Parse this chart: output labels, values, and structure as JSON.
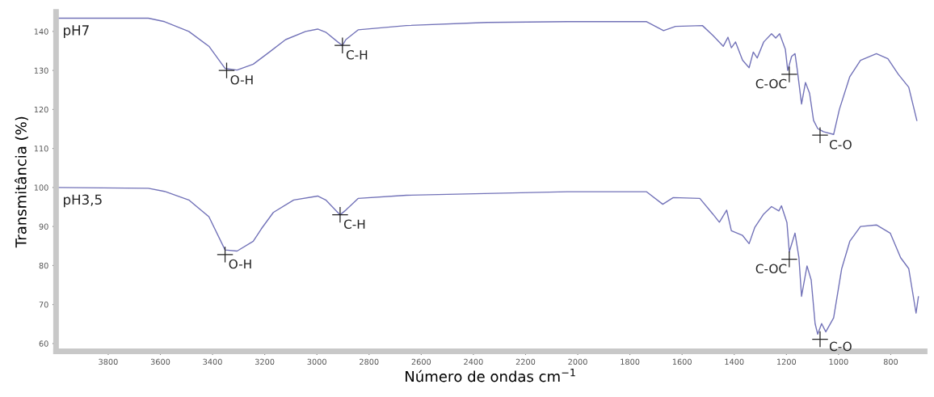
{
  "chart_data": {
    "type": "line",
    "xlabel": "Número de ondas cm$^{−1}$",
    "ylabel": "Transmitância (%)",
    "xlim": [
      4000,
      670
    ],
    "ylim": [
      58,
      145
    ],
    "xticks": [
      3800,
      3600,
      3400,
      3200,
      3000,
      2800,
      2600,
      2400,
      2200,
      2000,
      1800,
      1600,
      1400,
      1200,
      1000,
      800
    ],
    "yticks": [
      60,
      70,
      80,
      90,
      100,
      110,
      120,
      130,
      140
    ],
    "grid": false,
    "legend": false,
    "marker": "none",
    "line_style": "solid",
    "series": [
      {
        "name": "pH7",
        "color": "#7272b8",
        "x": [
          3992,
          3646,
          3584,
          3491,
          3414,
          3352,
          3306,
          3244,
          3182,
          3120,
          3043,
          2997,
          2966,
          2920,
          2902,
          2889,
          2842,
          2657,
          2348,
          2039,
          1736,
          1671,
          1625,
          1522,
          1482,
          1442,
          1424,
          1411,
          1395,
          1368,
          1343,
          1327,
          1312,
          1287,
          1257,
          1241,
          1226,
          1204,
          1195,
          1180,
          1167,
          1158,
          1142,
          1127,
          1111,
          1096,
          1080,
          1058,
          1019,
          997,
          957,
          916,
          855,
          811,
          771,
          731,
          700
        ],
        "values": [
          143.4,
          143.4,
          142.5,
          140,
          136.2,
          130.5,
          130.1,
          131.6,
          134.7,
          137.9,
          140,
          140.6,
          139.8,
          137.3,
          136.4,
          137.9,
          140.4,
          141.5,
          142.3,
          142.5,
          142.5,
          140.2,
          141.3,
          141.5,
          139,
          136.2,
          138.5,
          135.8,
          137.3,
          132.6,
          130.7,
          134.7,
          133.2,
          137.3,
          139.4,
          138.3,
          139.4,
          135.4,
          130,
          133.6,
          134.3,
          130,
          121.4,
          126.9,
          124.1,
          117.2,
          115.1,
          114.3,
          113.6,
          120,
          128.4,
          132.6,
          134.3,
          133,
          129,
          125.7,
          117.2
        ]
      },
      {
        "name": "pH3,5",
        "color": "#7272b8",
        "x": [
          3992,
          3646,
          3584,
          3491,
          3414,
          3352,
          3306,
          3244,
          3213,
          3167,
          3089,
          2997,
          2966,
          2920,
          2911,
          2889,
          2842,
          2657,
          2039,
          1736,
          1674,
          1634,
          1532,
          1482,
          1457,
          1429,
          1411,
          1368,
          1343,
          1321,
          1287,
          1257,
          1229,
          1219,
          1198,
          1189,
          1167,
          1152,
          1142,
          1121,
          1105,
          1090,
          1080,
          1065,
          1049,
          1019,
          988,
          957,
          916,
          855,
          802,
          762,
          731,
          703,
          694
        ],
        "values": [
          100,
          99.8,
          99,
          96.8,
          92.5,
          84,
          83.7,
          86.2,
          89.4,
          93.6,
          96.8,
          97.8,
          96.8,
          93.6,
          93,
          94.2,
          97.2,
          98,
          98.9,
          98.9,
          95.7,
          97.4,
          97.2,
          93.2,
          91.1,
          94.2,
          88.9,
          87.7,
          85.6,
          89.8,
          93.2,
          95.1,
          94,
          95.3,
          91,
          83.5,
          88.3,
          82,
          72.1,
          79.9,
          76.3,
          65.1,
          62.4,
          65.1,
          63,
          66.6,
          79.2,
          86.2,
          90,
          90.4,
          88.3,
          82,
          79.2,
          67.8,
          72
        ]
      }
    ],
    "annotations": [
      {
        "text": "O-H",
        "x": 3346,
        "y": 130
      },
      {
        "text": "C-H",
        "x": 2902,
        "y": 136.4
      },
      {
        "text": "C-OC",
        "x": 1189,
        "y": 129
      },
      {
        "text": "C-O",
        "x": 1071,
        "y": 113.4
      },
      {
        "text": "O-H",
        "x": 3352,
        "y": 82.8
      },
      {
        "text": "C-H",
        "x": 2911,
        "y": 93
      },
      {
        "text": "C-OC",
        "x": 1189,
        "y": 81.6
      },
      {
        "text": "C-O",
        "x": 1071,
        "y": 61.1
      }
    ]
  }
}
